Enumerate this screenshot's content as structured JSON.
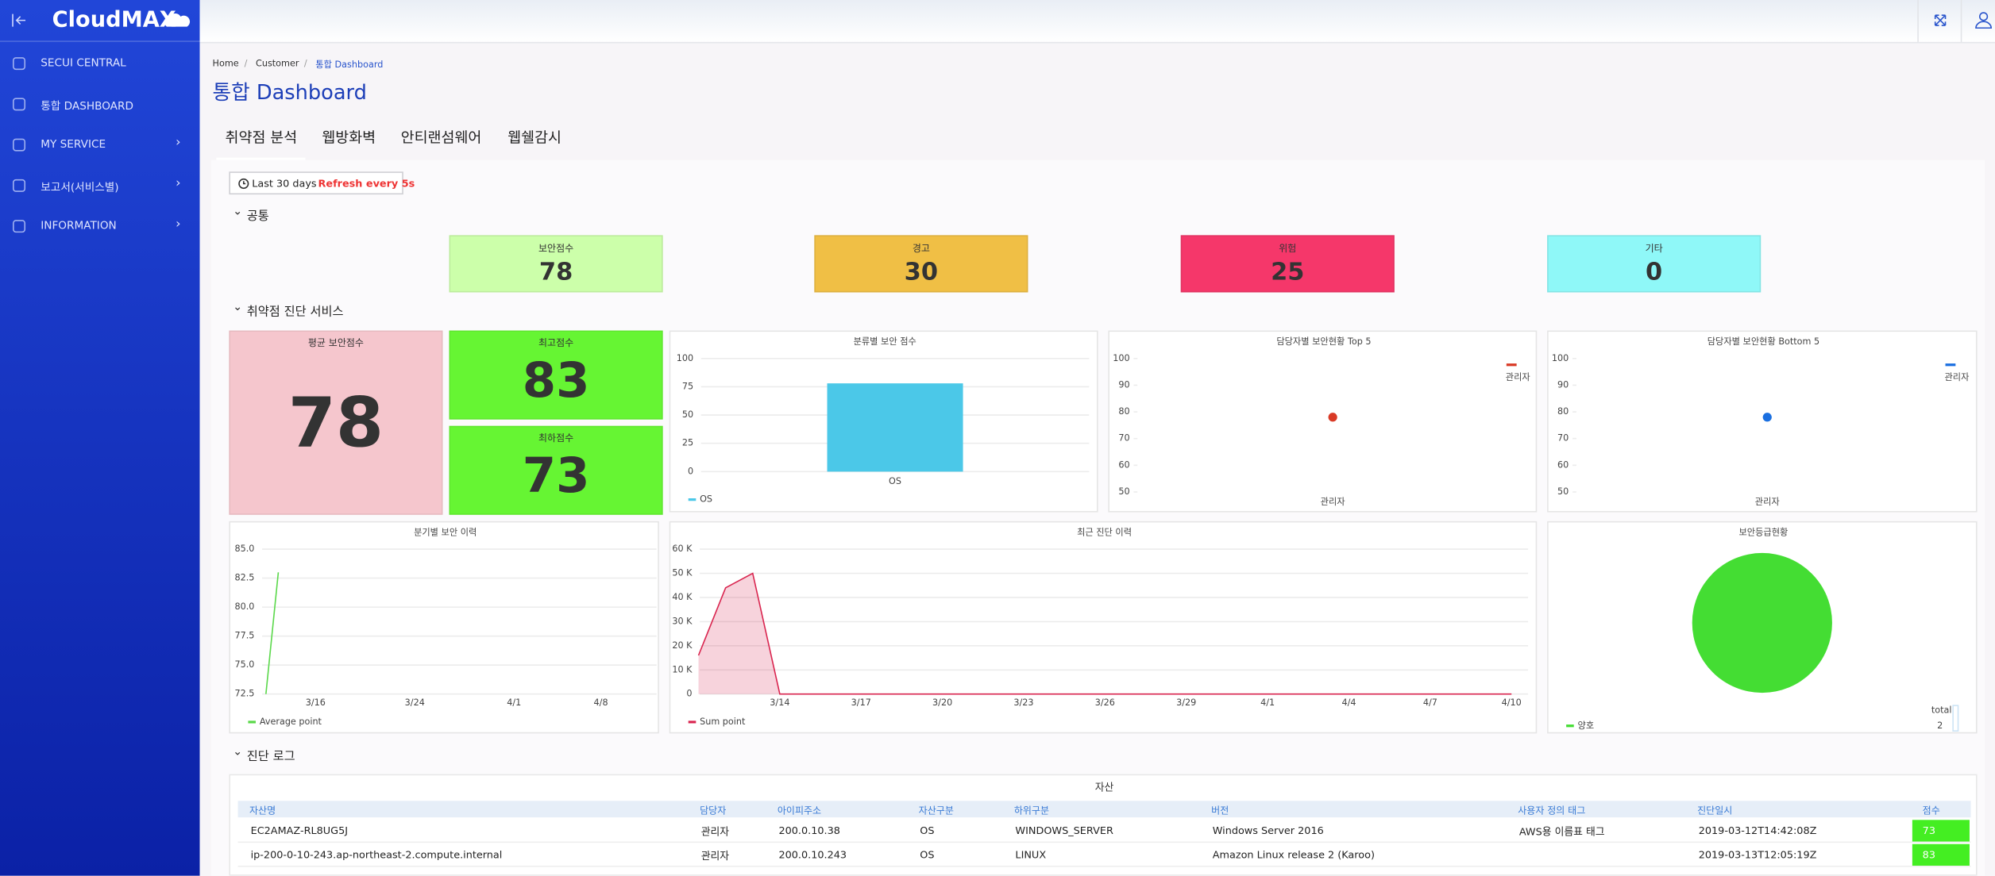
{
  "sidebar": {
    "logo": "CloudMAX",
    "menu": [
      "SECUI CENTRAL",
      "통합 DASHBOARD",
      "MY SERVICE",
      "보고서(서비스별)",
      "INFORMATION"
    ]
  },
  "breadcrumb": [
    "Home",
    "Customer",
    "통합 Dashboard"
  ],
  "title": "통합 Dashboard",
  "tabs": [
    "취약점 분석",
    "웹방화벽",
    "안티랜섬웨어",
    "웹쉘감시"
  ],
  "filter": {
    "range": "Last 30 days",
    "refresh": "Refresh every 5s"
  },
  "sections": [
    "공통",
    "취약점 진단 서비스",
    "진단 로그"
  ],
  "common_cards": [
    {
      "label": "보안점수",
      "value": 78,
      "color": "#ccffaa"
    },
    {
      "label": "경고",
      "value": 30,
      "color": "#f0bf45"
    },
    {
      "label": "위험",
      "value": 25,
      "color": "#f5376a"
    },
    {
      "label": "기타",
      "value": 0,
      "color": "#8ff8f8"
    }
  ],
  "score_cards": [
    {
      "label": "평균 보안점수",
      "value": 78,
      "color": "#f5c6cd"
    },
    {
      "label": "최고점수",
      "value": 83,
      "color": "#66f533"
    },
    {
      "label": "최하점수",
      "value": 73,
      "color": "#66f533"
    }
  ],
  "charts": {
    "category_score": {
      "type": "bar",
      "title": "분류별 보안 점수",
      "categories": [
        "OS"
      ],
      "series": [
        {
          "name": "OS",
          "color": "#4bc8e8",
          "values": [
            78
          ]
        }
      ],
      "ylim": [
        0,
        100
      ],
      "yticks": [
        0,
        25,
        50,
        75,
        100
      ],
      "grid": true,
      "legend": "bottom-left"
    },
    "top5": {
      "type": "scatter",
      "title": "담당자별 보안현황 Top 5",
      "categories": [
        "관리자"
      ],
      "series": [
        {
          "name": "관리자",
          "color": "#d93a26",
          "values": [
            78
          ]
        }
      ],
      "ylim": [
        50,
        100
      ],
      "yticks": [
        50,
        60,
        70,
        80,
        90,
        100
      ],
      "grid": false,
      "legend": "top-right"
    },
    "bottom5": {
      "type": "scatter",
      "title": "담당자별 보안현황 Bottom 5",
      "categories": [
        "관리자"
      ],
      "series": [
        {
          "name": "관리자",
          "color": "#1a6fe0",
          "values": [
            78
          ]
        }
      ],
      "ylim": [
        50,
        100
      ],
      "yticks": [
        50,
        60,
        70,
        80,
        90,
        100
      ],
      "grid": false,
      "legend": "top-right"
    },
    "quarterly": {
      "type": "line",
      "title": "분기별 보안 이력",
      "categories": [
        null,
        null,
        null,
        null,
        "3/16",
        null,
        null,
        null,
        null,
        null,
        null,
        null,
        "3/24",
        null,
        null,
        null,
        null,
        null,
        null,
        null,
        "4/1",
        null,
        null,
        null,
        null,
        null,
        null,
        "4/8",
        null,
        null
      ],
      "series": [
        {
          "name": "Average point",
          "color": "#5ad84a",
          "values": [
            72.5,
            83,
            null,
            null,
            null,
            null,
            null,
            null,
            null,
            null,
            null,
            null,
            null,
            null,
            null,
            null,
            null,
            null,
            null,
            null,
            null,
            null,
            null,
            null,
            null,
            null,
            null,
            null,
            null,
            null
          ]
        }
      ],
      "ylim": [
        72.5,
        85
      ],
      "yticks": [
        72.5,
        {
          "value": 75,
          "label": "75.0"
        },
        77.5,
        {
          "value": 80,
          "label": "80.0"
        },
        82.5,
        {
          "value": 85,
          "label": "85.0"
        }
      ],
      "grid": true,
      "legend": "bottom-left"
    },
    "recent": {
      "type": "area",
      "title": "최근 진단 이력",
      "categories": [
        null,
        null,
        null,
        "3/14",
        null,
        null,
        "3/17",
        null,
        null,
        "3/20",
        null,
        null,
        "3/23",
        null,
        null,
        "3/26",
        null,
        null,
        "3/29",
        null,
        null,
        "4/1",
        null,
        null,
        "4/4",
        null,
        null,
        "4/7",
        null,
        null,
        "4/10"
      ],
      "series": [
        {
          "name": "Sum point",
          "color": "#d9254f",
          "values": [
            16000,
            44000,
            50000,
            0,
            0,
            0,
            0,
            0,
            0,
            0,
            0,
            0,
            0,
            0,
            0,
            0,
            0,
            0,
            0,
            0,
            0,
            0,
            0,
            0,
            0,
            0,
            0,
            0,
            0,
            0,
            0
          ]
        }
      ],
      "ylim": [
        0,
        60000
      ],
      "yticks": [
        0,
        {
          "value": 10000,
          "label": "10 K"
        },
        {
          "value": 20000,
          "label": "20 K"
        },
        {
          "value": 30000,
          "label": "30 K"
        },
        {
          "value": 40000,
          "label": "40 K"
        },
        {
          "value": 50000,
          "label": "50 K"
        },
        {
          "value": 60000,
          "label": "60 K"
        }
      ],
      "grid": true,
      "legend": "bottom-left"
    },
    "grade": {
      "type": "pie",
      "title": "보안등급현황",
      "categories": [
        "양호"
      ],
      "values": [
        2
      ],
      "colors": [
        "#44dd33"
      ],
      "total_label": "total",
      "total": 2,
      "legend": "bottom-left"
    }
  },
  "table": {
    "caption": "자산",
    "columns": [
      "자산명",
      "담당자",
      "아이피주소",
      "자산구분",
      "하위구분",
      "버전",
      "사용자 정의 태그",
      "진단일시",
      "점수"
    ],
    "rows": [
      [
        "EC2AMAZ-RL8UG5J",
        "관리자",
        "200.0.10.38",
        "OS",
        "WINDOWS_SERVER",
        "Windows Server 2016",
        "AWS용 이름표 태그",
        "2019-03-12T14:42:08Z",
        73
      ],
      [
        "ip-200-0-10-243.ap-northeast-2.compute.internal",
        "관리자",
        "200.0.10.243",
        "OS",
        "LINUX",
        "Amazon Linux release 2 (Karoo)",
        null,
        "2019-03-13T12:05:19Z",
        83
      ]
    ]
  }
}
